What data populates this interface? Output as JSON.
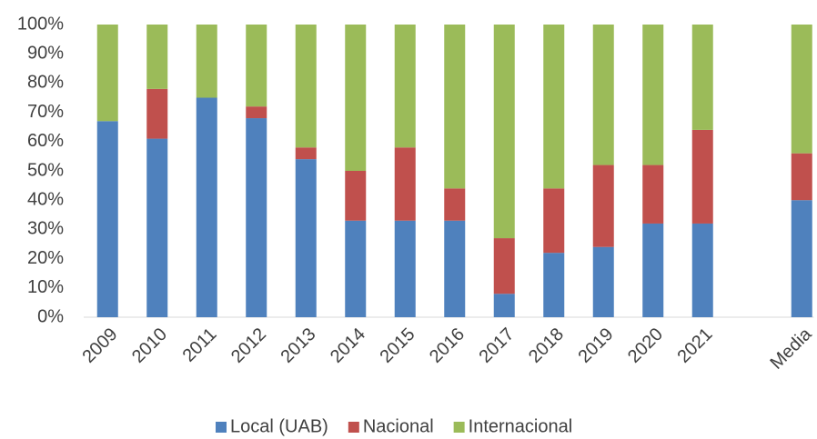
{
  "chart_data": {
    "type": "stacked_bar",
    "categories": [
      "2009",
      "2010",
      "2011",
      "2012",
      "2013",
      "2014",
      "2015",
      "2016",
      "2017",
      "2018",
      "2019",
      "2020",
      "2021",
      null,
      "Media"
    ],
    "series": [
      {
        "name": "Local (UAB)",
        "color": "#4f81bd",
        "values": [
          67,
          61,
          75,
          68,
          54,
          33,
          33,
          33,
          8,
          22,
          24,
          32,
          32,
          null,
          40
        ]
      },
      {
        "name": "Nacional",
        "color": "#c0504d",
        "values": [
          0,
          17,
          0,
          4,
          4,
          17,
          25,
          11,
          19,
          22,
          28,
          20,
          32,
          null,
          16
        ]
      },
      {
        "name": "Internacional",
        "color": "#9bbb59",
        "values": [
          33,
          22,
          25,
          28,
          42,
          50,
          42,
          56,
          73,
          56,
          48,
          48,
          36,
          null,
          44
        ]
      }
    ],
    "ylim": [
      0,
      100
    ],
    "yticks": [
      {
        "value": 0,
        "label": "0%"
      },
      {
        "value": 10,
        "label": "10%"
      },
      {
        "value": 20,
        "label": "20%"
      },
      {
        "value": 30,
        "label": "30%"
      },
      {
        "value": 40,
        "label": "40%"
      },
      {
        "value": 50,
        "label": "50%"
      },
      {
        "value": 60,
        "label": "60%"
      },
      {
        "value": 70,
        "label": "70%"
      },
      {
        "value": 80,
        "label": "80%"
      },
      {
        "value": 90,
        "label": "90%"
      },
      {
        "value": 100,
        "label": "100%"
      }
    ],
    "legend": "bottom"
  }
}
